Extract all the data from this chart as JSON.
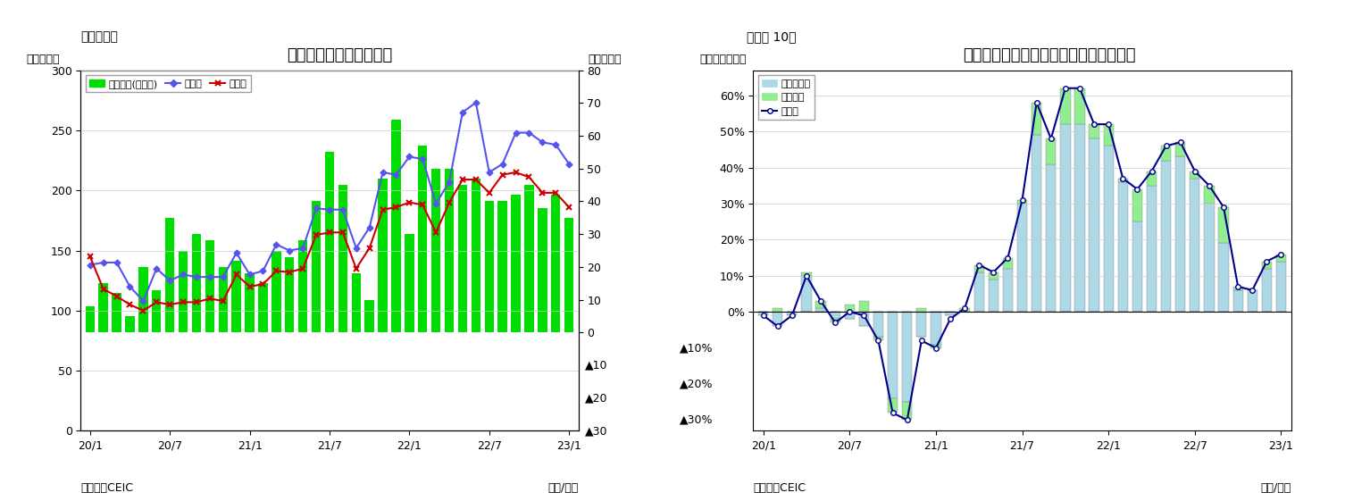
{
  "fig9": {
    "title": "インドネシア　貿易収支",
    "label_top": "（図表９）",
    "ylabel_left": "（億ドル）",
    "ylabel_right": "（億ドル）",
    "xlabel": "（年/月）",
    "source": "（資料）CEIC",
    "xtick_labels": [
      "20/1",
      "20/7",
      "21/1",
      "21/7",
      "22/1",
      "22/7",
      "23/1"
    ],
    "xtick_positions": [
      0,
      6,
      12,
      18,
      24,
      30,
      36
    ],
    "bar_color": "#00DD00",
    "line_export_color": "#5555EE",
    "line_import_color": "#CC0000",
    "trade_balance": [
      8,
      15,
      12,
      5,
      20,
      13,
      35,
      25,
      30,
      28,
      20,
      22,
      18,
      15,
      25,
      23,
      28,
      40,
      55,
      45,
      18,
      10,
      47,
      65,
      30,
      57,
      50,
      50,
      45,
      47,
      40,
      40,
      42,
      45,
      38,
      42,
      35
    ],
    "exports": [
      138,
      140,
      140,
      120,
      108,
      135,
      125,
      130,
      128,
      128,
      128,
      148,
      130,
      133,
      155,
      150,
      152,
      185,
      184,
      184,
      152,
      169,
      215,
      213,
      228,
      226,
      189,
      207,
      265,
      273,
      215,
      222,
      248,
      248,
      240,
      238,
      222
    ],
    "imports": [
      145,
      118,
      112,
      105,
      100,
      107,
      105,
      107,
      107,
      110,
      108,
      130,
      120,
      122,
      133,
      132,
      135,
      163,
      165,
      165,
      135,
      152,
      184,
      186,
      190,
      188,
      165,
      190,
      209,
      209,
      198,
      213,
      215,
      211,
      198,
      198,
      186
    ],
    "legend_bar": "貿易収支(右目盛)",
    "legend_export": "輸出額",
    "legend_import": "輸入額"
  },
  "fig10": {
    "title": "インドネシア　輸出の伸び率（品目別）",
    "label_top": "（図表 10）",
    "ylabel_left": "（前年同月比）",
    "xlabel": "（年/月）",
    "source": "（資料）CEIC",
    "xtick_labels": [
      "20/1",
      "20/7",
      "21/1",
      "21/7",
      "22/1",
      "22/7",
      "23/1"
    ],
    "xtick_positions": [
      0,
      6,
      12,
      18,
      24,
      30,
      36
    ],
    "bar_nonoil_color": "#ADD8E6",
    "bar_oil_color": "#90EE90",
    "line_color": "#00008B",
    "nonoil_gas": [
      -0.01,
      -0.04,
      -0.01,
      0.1,
      0.01,
      -0.02,
      -0.02,
      -0.04,
      -0.07,
      -0.24,
      -0.25,
      -0.07,
      -0.09,
      -0.01,
      0.0,
      0.11,
      0.09,
      0.12,
      0.3,
      0.49,
      0.41,
      0.52,
      0.52,
      0.48,
      0.46,
      0.36,
      0.25,
      0.35,
      0.42,
      0.43,
      0.37,
      0.3,
      0.19,
      0.06,
      0.06,
      0.12,
      0.14
    ],
    "oil_gas": [
      0.0,
      0.01,
      0.0,
      0.01,
      0.02,
      -0.01,
      0.02,
      0.03,
      -0.01,
      -0.04,
      -0.05,
      0.01,
      -0.01,
      0.0,
      0.01,
      0.02,
      0.02,
      0.03,
      0.01,
      0.09,
      0.07,
      0.1,
      0.1,
      0.04,
      0.06,
      0.01,
      0.09,
      0.04,
      0.04,
      0.04,
      0.02,
      0.05,
      0.1,
      0.01,
      0.0,
      0.02,
      0.02
    ],
    "total_exports": [
      -0.01,
      -0.04,
      -0.01,
      0.1,
      0.03,
      -0.03,
      0.0,
      -0.01,
      -0.08,
      -0.28,
      -0.3,
      -0.08,
      -0.1,
      -0.02,
      0.01,
      0.13,
      0.11,
      0.15,
      0.31,
      0.58,
      0.48,
      0.62,
      0.62,
      0.52,
      0.52,
      0.37,
      0.34,
      0.39,
      0.46,
      0.47,
      0.39,
      0.35,
      0.29,
      0.07,
      0.06,
      0.14,
      0.16
    ],
    "legend_nonoil": "非石油ガス",
    "legend_oil": "石油ガス",
    "legend_export": "輸出額"
  }
}
